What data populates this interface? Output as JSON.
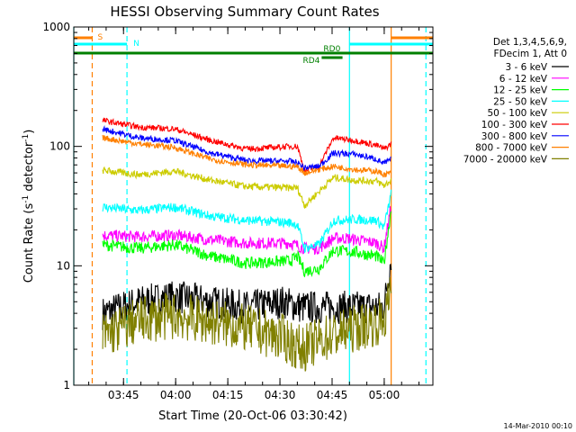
{
  "chart_data": {
    "type": "line",
    "title": "HESSI Observing Summary Count Rates",
    "xlabel": "Start Time (20-Oct-06 03:30:42)",
    "ylabel_main": "Count Rate (s",
    "ylabel_sup1": "-1",
    "ylabel_mid": " detector",
    "ylabel_sup2": "-1",
    "ylabel_end": ")",
    "y_scale": "log",
    "ylim": [
      1,
      1000
    ],
    "xlim": [
      "03:30:42",
      "05:14:00"
    ],
    "x_ticks": [
      "03:45",
      "04:00",
      "04:15",
      "04:30",
      "04:45",
      "05:00"
    ],
    "y_ticks": [
      "1",
      "10",
      "100",
      "1000"
    ],
    "timestamp": "14-Mar-2010 00:10",
    "legend": {
      "position": "right",
      "header": [
        "Det 1,3,4,5,6,9,",
        "FDecim 1, Att 0"
      ]
    },
    "series": [
      {
        "name": "3 - 6 keV",
        "color": "#000000",
        "start": "03:39",
        "end": "05:02",
        "values": [
          [
            0,
            4
          ],
          [
            10,
            5
          ],
          [
            20,
            5.5
          ],
          [
            30,
            5
          ],
          [
            40,
            4.5
          ],
          [
            50,
            5
          ],
          [
            55,
            4.5
          ],
          [
            65,
            4.5
          ],
          [
            72,
            4.5
          ],
          [
            78,
            4.5
          ],
          [
            80,
            12
          ]
        ],
        "noise": 0.14
      },
      {
        "name": "6 - 12 keV",
        "color": "#ff00ff",
        "start": "03:39",
        "end": "05:02",
        "values": [
          [
            0,
            18
          ],
          [
            10,
            17.5
          ],
          [
            20,
            18
          ],
          [
            30,
            16.5
          ],
          [
            40,
            15.5
          ],
          [
            52,
            15.5
          ],
          [
            56,
            14
          ],
          [
            60,
            14
          ],
          [
            64,
            17
          ],
          [
            68,
            17
          ],
          [
            76,
            15.5
          ],
          [
            78,
            14
          ],
          [
            80,
            32
          ]
        ],
        "noise": 0.05
      },
      {
        "name": "12 - 25 keV",
        "color": "#00ff00",
        "start": "03:39",
        "end": "05:02",
        "values": [
          [
            0,
            15
          ],
          [
            10,
            14
          ],
          [
            20,
            15
          ],
          [
            30,
            12
          ],
          [
            40,
            10.5
          ],
          [
            52,
            11
          ],
          [
            54,
            12
          ],
          [
            56,
            9
          ],
          [
            60,
            9.5
          ],
          [
            64,
            13.5
          ],
          [
            70,
            13
          ],
          [
            76,
            12
          ],
          [
            78,
            10.5
          ],
          [
            80,
            30
          ]
        ],
        "noise": 0.05
      },
      {
        "name": "25 - 50 keV",
        "color": "#00ffff",
        "start": "03:39",
        "end": "05:02",
        "values": [
          [
            0,
            31
          ],
          [
            10,
            29
          ],
          [
            20,
            31
          ],
          [
            30,
            26
          ],
          [
            40,
            24
          ],
          [
            52,
            23
          ],
          [
            54,
            22
          ],
          [
            56,
            14
          ],
          [
            60,
            15
          ],
          [
            64,
            24
          ],
          [
            70,
            24.5
          ],
          [
            76,
            24
          ],
          [
            78,
            21
          ],
          [
            80,
            40
          ]
        ],
        "noise": 0.04
      },
      {
        "name": "50 - 100 keV",
        "color": "#cccc00",
        "start": "03:39",
        "end": "05:02",
        "values": [
          [
            0,
            63
          ],
          [
            10,
            58
          ],
          [
            20,
            62
          ],
          [
            30,
            52
          ],
          [
            40,
            46
          ],
          [
            52,
            45
          ],
          [
            54,
            45
          ],
          [
            56,
            32
          ],
          [
            60,
            42
          ],
          [
            64,
            55
          ],
          [
            70,
            52
          ],
          [
            76,
            51
          ],
          [
            78,
            47
          ],
          [
            80,
            52
          ]
        ],
        "noise": 0.03
      },
      {
        "name": "100 - 300 keV",
        "color": "#ff0000",
        "start": "03:39",
        "end": "05:02",
        "values": [
          [
            0,
            165
          ],
          [
            10,
            145
          ],
          [
            20,
            140
          ],
          [
            30,
            112
          ],
          [
            40,
            95
          ],
          [
            52,
            100
          ],
          [
            54,
            100
          ],
          [
            56,
            62
          ],
          [
            60,
            68
          ],
          [
            64,
            118
          ],
          [
            70,
            112
          ],
          [
            76,
            102
          ],
          [
            78,
            95
          ],
          [
            80,
            105
          ]
        ],
        "noise": 0.025
      },
      {
        "name": "300 - 800 keV",
        "color": "#0000ff",
        "start": "03:39",
        "end": "05:02",
        "values": [
          [
            0,
            140
          ],
          [
            10,
            118
          ],
          [
            20,
            112
          ],
          [
            30,
            88
          ],
          [
            40,
            76
          ],
          [
            52,
            75
          ],
          [
            54,
            73
          ],
          [
            56,
            66
          ],
          [
            60,
            68
          ],
          [
            64,
            88
          ],
          [
            70,
            86
          ],
          [
            76,
            78
          ],
          [
            78,
            72
          ],
          [
            80,
            78
          ]
        ],
        "noise": 0.025
      },
      {
        "name": "800 - 7000 keV",
        "color": "#ff8000",
        "start": "03:39",
        "end": "05:02",
        "values": [
          [
            0,
            118
          ],
          [
            10,
            105
          ],
          [
            20,
            98
          ],
          [
            30,
            78
          ],
          [
            40,
            70
          ],
          [
            52,
            68
          ],
          [
            54,
            68
          ],
          [
            56,
            60
          ],
          [
            60,
            64
          ],
          [
            64,
            68
          ],
          [
            70,
            64
          ],
          [
            76,
            62
          ],
          [
            78,
            58
          ],
          [
            80,
            60
          ]
        ],
        "noise": 0.025
      },
      {
        "name": "7000 - 20000 keV",
        "color": "#808000",
        "start": "03:39",
        "end": "05:02",
        "values": [
          [
            0,
            2.6
          ],
          [
            10,
            3.5
          ],
          [
            20,
            3.8
          ],
          [
            30,
            3.4
          ],
          [
            40,
            3
          ],
          [
            50,
            2.5
          ],
          [
            55,
            2
          ],
          [
            62,
            2.5
          ],
          [
            70,
            3
          ],
          [
            78,
            3.5
          ],
          [
            80,
            6
          ]
        ],
        "noise": 0.2
      }
    ],
    "annotations": [
      {
        "label": "S",
        "color": "#ff8000",
        "segments": [
          [
            "03:30:42",
            "03:36"
          ],
          [
            "05:02",
            "05:14"
          ]
        ],
        "level": 0
      },
      {
        "label": "N",
        "color": "#00ffff",
        "segments": [
          [
            "03:30:42",
            "03:46"
          ],
          [
            "04:50",
            "05:14"
          ]
        ],
        "level": 1
      },
      {
        "label": "RD0",
        "color": "#008000",
        "segments": [
          [
            "03:30:42",
            "05:14"
          ]
        ],
        "level": 2
      },
      {
        "label": "RD4",
        "color": "#008000",
        "segments": [
          [
            "04:42",
            "04:48"
          ]
        ],
        "level": 3
      }
    ],
    "vertical_lines": [
      {
        "time": "03:30:42",
        "color": "#00ffff",
        "style": "solid"
      },
      {
        "time": "03:36",
        "color": "#ff8000",
        "style": "dashed"
      },
      {
        "time": "03:46",
        "color": "#00ffff",
        "style": "dashed"
      },
      {
        "time": "04:50",
        "color": "#00ffff",
        "style": "solid"
      },
      {
        "time": "05:02",
        "color": "#ff8000",
        "style": "solid"
      },
      {
        "time": "05:12",
        "color": "#00ffff",
        "style": "dashed"
      }
    ]
  }
}
